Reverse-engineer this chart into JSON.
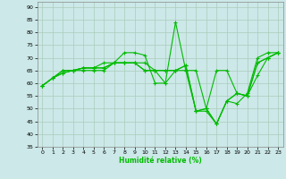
{
  "title": "",
  "xlabel": "Humidité relative (%)",
  "ylabel": "",
  "bg_color": "#cce8e8",
  "grid_color": "#aaccbb",
  "line_color": "#00bb00",
  "marker": "+",
  "ylim": [
    35,
    92
  ],
  "yticks": [
    35,
    40,
    45,
    50,
    55,
    60,
    65,
    70,
    75,
    80,
    85,
    90
  ],
  "xlim": [
    -0.5,
    23.5
  ],
  "xticks": [
    0,
    1,
    2,
    3,
    4,
    5,
    6,
    7,
    8,
    9,
    10,
    11,
    12,
    13,
    14,
    15,
    16,
    17,
    18,
    19,
    20,
    21,
    22,
    23
  ],
  "series": [
    [
      59,
      62,
      64,
      65,
      65,
      65,
      65,
      68,
      72,
      72,
      71,
      60,
      60,
      84,
      65,
      49,
      49,
      44,
      53,
      52,
      56,
      70,
      72,
      72
    ],
    [
      59,
      62,
      64,
      65,
      66,
      66,
      66,
      68,
      68,
      68,
      68,
      65,
      60,
      65,
      67,
      49,
      50,
      44,
      53,
      56,
      55,
      63,
      70,
      72
    ],
    [
      59,
      62,
      65,
      65,
      66,
      66,
      66,
      68,
      68,
      68,
      65,
      65,
      65,
      65,
      67,
      49,
      50,
      44,
      53,
      56,
      55,
      68,
      70,
      72
    ],
    [
      59,
      62,
      65,
      65,
      66,
      66,
      68,
      68,
      68,
      68,
      65,
      65,
      65,
      65,
      65,
      65,
      50,
      65,
      65,
      56,
      55,
      68,
      70,
      72
    ]
  ]
}
